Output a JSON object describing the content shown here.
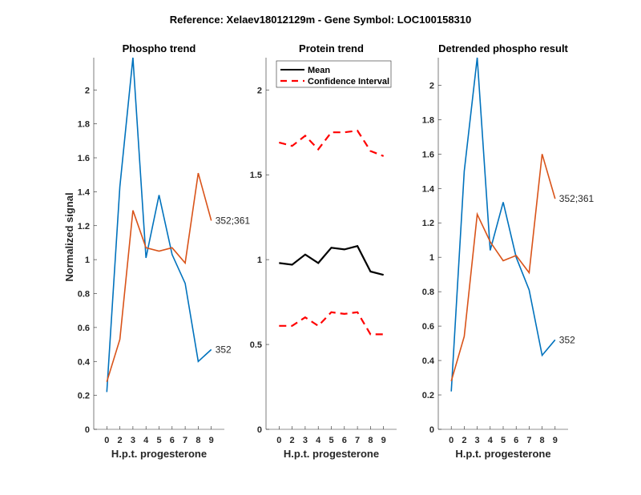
{
  "title": "Reference:  Xelaev18012129m - Gene Symbol:  LOC100158310",
  "chart_data": [
    {
      "type": "line",
      "title": "Phospho trend",
      "xlabel": "H.p.t. progesterone",
      "ylabel": "Normalized signal",
      "categories": [
        "0",
        "2",
        "3",
        "4",
        "5",
        "6",
        "7",
        "8",
        "9"
      ],
      "ylim": [
        0,
        2.19
      ],
      "yticks": [
        0,
        0.2,
        0.4,
        0.6,
        0.8,
        1,
        1.2,
        1.4,
        1.6,
        1.8,
        2
      ],
      "ytick_labels": [
        "0",
        "0.2",
        "0.4",
        "0.6",
        "0.8",
        "1",
        "1.2",
        "1.4",
        "1.6",
        "1.8",
        "2"
      ],
      "grid": false,
      "series": [
        {
          "name": "352",
          "color": "#0072BD",
          "values": [
            0.22,
            1.43,
            2.19,
            1.01,
            1.38,
            1.03,
            0.86,
            0.4,
            0.47
          ]
        },
        {
          "name": "352;361",
          "color": "#D95319",
          "values": [
            0.28,
            0.53,
            1.29,
            1.07,
            1.05,
            1.07,
            0.98,
            1.51,
            1.23
          ]
        }
      ]
    },
    {
      "type": "line",
      "title": "Protein trend",
      "xlabel": "H.p.t. progesterone",
      "ylabel": "",
      "categories": [
        "0",
        "2",
        "3",
        "4",
        "5",
        "6",
        "7",
        "8",
        "9"
      ],
      "ylim": [
        0,
        2.19
      ],
      "yticks": [
        0,
        0.5,
        1,
        1.5,
        2
      ],
      "ytick_labels": [
        "0",
        "0.5",
        "1",
        "1.5",
        "2"
      ],
      "grid": false,
      "legend": {
        "placement": "top-left",
        "entries": [
          "Mean",
          "Confidence Interval"
        ]
      },
      "series": [
        {
          "name": "Mean",
          "color": "#000000",
          "style": "solid",
          "values": [
            0.98,
            0.97,
            1.03,
            0.98,
            1.07,
            1.06,
            1.08,
            0.93,
            0.91
          ]
        },
        {
          "name": "Confidence Interval",
          "color": "#FF0000",
          "style": "dashed",
          "values": [
            1.69,
            1.67,
            1.73,
            1.65,
            1.75,
            1.75,
            1.76,
            1.64,
            1.61
          ]
        },
        {
          "name": "Confidence Interval",
          "color": "#FF0000",
          "style": "dashed",
          "values": [
            0.61,
            0.61,
            0.66,
            0.61,
            0.69,
            0.68,
            0.69,
            0.56,
            0.56
          ]
        }
      ]
    },
    {
      "type": "line",
      "title": "Detrended phospho result",
      "xlabel": "H.p.t. progesterone",
      "ylabel": "",
      "categories": [
        "0",
        "2",
        "3",
        "4",
        "5",
        "6",
        "7",
        "8",
        "9"
      ],
      "ylim": [
        0,
        2.16
      ],
      "yticks": [
        0,
        0.2,
        0.4,
        0.6,
        0.8,
        1,
        1.2,
        1.4,
        1.6,
        1.8,
        2
      ],
      "ytick_labels": [
        "0",
        "0.2",
        "0.4",
        "0.6",
        "0.8",
        "1",
        "1.2",
        "1.4",
        "1.6",
        "1.8",
        "2"
      ],
      "grid": false,
      "series": [
        {
          "name": "352",
          "color": "#0072BD",
          "values": [
            0.22,
            1.5,
            2.16,
            1.04,
            1.32,
            1.0,
            0.81,
            0.43,
            0.52
          ]
        },
        {
          "name": "352;361",
          "color": "#D95319",
          "values": [
            0.28,
            0.54,
            1.25,
            1.09,
            0.98,
            1.01,
            0.91,
            1.6,
            1.34
          ]
        }
      ]
    }
  ]
}
